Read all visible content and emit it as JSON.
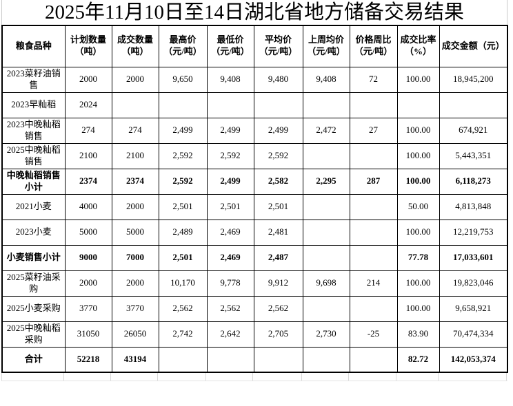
{
  "title": "2025年11月10日至14日湖北省地方储备交易结果",
  "colors": {
    "background": "#ffffff",
    "text": "#000000",
    "table_border": "#000000",
    "sheet_gridline": "#d9d9d9"
  },
  "table": {
    "headers": [
      "粮食品种",
      "计划数量（吨）",
      "成交数量（吨）",
      "最高价（元/吨）",
      "最低价（元/吨）",
      "平均价（元/吨）",
      "上周均价（元/吨）",
      "价格周比（元/吨）",
      "成交比率（%）",
      "成交金额（元）"
    ],
    "rows": [
      {
        "bold": false,
        "cells": [
          "2023菜籽油销售",
          "2000",
          "2000",
          "9,650",
          "9,408",
          "9,480",
          "9,408",
          "72",
          "100.00",
          "18,945,200"
        ]
      },
      {
        "bold": false,
        "cells": [
          "2023早籼稻",
          "2024",
          "",
          "",
          "",
          "",
          "",
          "",
          "",
          ""
        ]
      },
      {
        "bold": false,
        "cells": [
          "2023中晚籼稻销售",
          "274",
          "274",
          "2,499",
          "2,499",
          "2,499",
          "2,472",
          "27",
          "100.00",
          "674,921"
        ]
      },
      {
        "bold": false,
        "cells": [
          "2025中晚籼稻销售",
          "2100",
          "2100",
          "2,592",
          "2,592",
          "2,592",
          "",
          "",
          "100.00",
          "5,443,351"
        ]
      },
      {
        "bold": true,
        "cells": [
          "中晚籼稻销售小计",
          "2374",
          "2374",
          "2,592",
          "2,499",
          "2,582",
          "2,295",
          "287",
          "100.00",
          "6,118,273"
        ]
      },
      {
        "bold": false,
        "cells": [
          "2021小麦",
          "4000",
          "2000",
          "2,501",
          "2,501",
          "2,501",
          "",
          "",
          "50.00",
          "4,813,848"
        ]
      },
      {
        "bold": false,
        "cells": [
          "2023小麦",
          "5000",
          "5000",
          "2,489",
          "2,469",
          "2,481",
          "",
          "",
          "100.00",
          "12,219,753"
        ]
      },
      {
        "bold": true,
        "cells": [
          "小麦销售小计",
          "9000",
          "7000",
          "2,501",
          "2,469",
          "2,487",
          "",
          "",
          "77.78",
          "17,033,601"
        ]
      },
      {
        "bold": false,
        "cells": [
          "2025菜籽油采购",
          "2000",
          "2000",
          "10,170",
          "9,778",
          "9,912",
          "9,698",
          "214",
          "100.00",
          "19,823,046"
        ]
      },
      {
        "bold": false,
        "cells": [
          "2025小麦采购",
          "3770",
          "3770",
          "2,562",
          "2,562",
          "2,562",
          "",
          "",
          "100.00",
          "9,658,921"
        ]
      },
      {
        "bold": false,
        "cells": [
          "2025中晚籼稻采购",
          "31050",
          "26050",
          "2,742",
          "2,642",
          "2,705",
          "2,730",
          "-25",
          "83.90",
          "70,474,334"
        ]
      },
      {
        "bold": true,
        "cells": [
          "合计",
          "52218",
          "43194",
          "",
          "",
          "",
          "",
          "",
          "82.72",
          "142,053,374"
        ]
      }
    ]
  }
}
